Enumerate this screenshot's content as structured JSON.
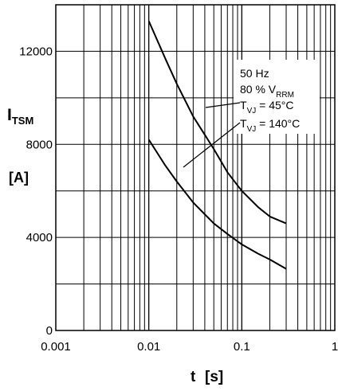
{
  "chart_data": {
    "type": "line",
    "x_scale": "log",
    "xlim": [
      0.001,
      1
    ],
    "ylim": [
      0,
      14000
    ],
    "x_ticks": [
      {
        "value": 0.001,
        "label": "0.001"
      },
      {
        "value": 0.01,
        "label": "0.01"
      },
      {
        "value": 0.1,
        "label": "0.1"
      },
      {
        "value": 1,
        "label": "1"
      }
    ],
    "y_ticks": [
      {
        "value": 0,
        "label": "0"
      },
      {
        "value": 4000,
        "label": "4000"
      },
      {
        "value": 8000,
        "label": "8000"
      },
      {
        "value": 12000,
        "label": "12000"
      }
    ],
    "y_gridlines": [
      2000,
      4000,
      6000,
      8000,
      10000,
      12000
    ],
    "grid": true,
    "ylabel": {
      "main": "I",
      "sub": "TSM",
      "unit": "[A]"
    },
    "xlabel": {
      "symbol": "t",
      "unit": "[s]"
    },
    "annotation": {
      "line1": "50 Hz",
      "line2": {
        "prefix": "80 % V",
        "sub": "RRM"
      },
      "line3": {
        "prefix": "T",
        "sub": "VJ",
        "suffix": " = 45°C"
      },
      "line4": {
        "prefix": "T",
        "sub": "VJ",
        "suffix": " = 140°C"
      }
    },
    "series": [
      {
        "condition": "T_VJ = 45°C",
        "x": [
          0.01,
          0.015,
          0.02,
          0.03,
          0.05,
          0.07,
          0.1,
          0.15,
          0.2,
          0.3
        ],
        "y": [
          13300,
          11700,
          10600,
          9200,
          7800,
          6800,
          6000,
          5300,
          4900,
          4600
        ]
      },
      {
        "condition": "T_VJ = 140°C",
        "x": [
          0.01,
          0.015,
          0.02,
          0.03,
          0.05,
          0.07,
          0.1,
          0.15,
          0.2,
          0.3
        ],
        "y": [
          8200,
          7100,
          6400,
          5500,
          4600,
          4150,
          3700,
          3300,
          3050,
          2650
        ]
      }
    ],
    "colors": {
      "line": "#000000",
      "grid": "#000000",
      "background": "#ffffff"
    }
  }
}
